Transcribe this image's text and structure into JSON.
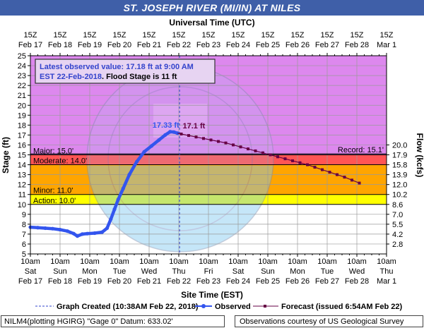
{
  "title": "ST. JOSEPH RIVER (MI/IN) AT NILES",
  "top_axis_title": "Universal Time (UTC)",
  "bottom_axis_title": "Site Time (EST)",
  "left_axis_title": "Stage (ft)",
  "right_axis_title": "Flow (kcfs)",
  "info_box": {
    "line1": "Latest observed value: 17.18 ft at 9:00 AM",
    "line2_a": "EST 22-Feb-2018",
    "line2_b": ". Flood Stage is 11 ft"
  },
  "legend": {
    "graph_created": "Graph Created (10:38AM Feb 22, 2018)",
    "observed": "Observed",
    "forecast": "Forecast (issued 6:54AM Feb 22)"
  },
  "footer": {
    "left": "NILM4(plotting HGIRG) \"Gage 0\" Datum: 633.02'",
    "right": "Observations courtesy of US Geological Survey"
  },
  "colors": {
    "title_bg": "#3f5fa8",
    "major": "#dd88ee",
    "moderate": "#ff5555",
    "minor": "#ffa500",
    "action": "#ffff00",
    "observed": "#3355ee",
    "forecast": "#660044"
  },
  "chart_data": {
    "type": "line",
    "title": "ST. JOSEPH RIVER (MI/IN) AT NILES",
    "xlabel": "Site Time (EST)",
    "ylabel": "Stage (ft)",
    "y2label": "Flow (kcfs)",
    "ylim": [
      5,
      25
    ],
    "xlim": [
      "2018-02-17 10:00",
      "2018-03-01 10:00"
    ],
    "grid": true,
    "bottom_ticks": [
      {
        "time": "10am",
        "day": "Sat",
        "date": "Feb 17"
      },
      {
        "time": "10am",
        "day": "Sun",
        "date": "Feb 18"
      },
      {
        "time": "10am",
        "day": "Mon",
        "date": "Feb 19"
      },
      {
        "time": "10am",
        "day": "Tue",
        "date": "Feb 20"
      },
      {
        "time": "10am",
        "day": "Wed",
        "date": "Feb 21"
      },
      {
        "time": "10am",
        "day": "Thu",
        "date": "Feb 22"
      },
      {
        "time": "10am",
        "day": "Fri",
        "date": "Feb 23"
      },
      {
        "time": "10am",
        "day": "Sat",
        "date": "Feb 24"
      },
      {
        "time": "10am",
        "day": "Sun",
        "date": "Feb 25"
      },
      {
        "time": "10am",
        "day": "Mon",
        "date": "Feb 26"
      },
      {
        "time": "10am",
        "day": "Tue",
        "date": "Feb 27"
      },
      {
        "time": "10am",
        "day": "Wed",
        "date": "Feb 28"
      },
      {
        "time": "10am",
        "day": "Thu",
        "date": "Mar 1"
      }
    ],
    "top_ticks": [
      {
        "time": "15Z",
        "date": "Feb 17"
      },
      {
        "time": "15Z",
        "date": "Feb 18"
      },
      {
        "time": "15Z",
        "date": "Feb 19"
      },
      {
        "time": "15Z",
        "date": "Feb 20"
      },
      {
        "time": "15Z",
        "date": "Feb 21"
      },
      {
        "time": "15Z",
        "date": "Feb 22"
      },
      {
        "time": "15Z",
        "date": "Feb 23"
      },
      {
        "time": "15Z",
        "date": "Feb 24"
      },
      {
        "time": "15Z",
        "date": "Feb 25"
      },
      {
        "time": "15Z",
        "date": "Feb 26"
      },
      {
        "time": "15Z",
        "date": "Feb 27"
      },
      {
        "time": "15Z",
        "date": "Feb 28"
      },
      {
        "time": "15Z",
        "date": "Mar 1"
      }
    ],
    "y_ticks": [
      5,
      6,
      7,
      8,
      9,
      10,
      11,
      12,
      13,
      14,
      15,
      16,
      17,
      18,
      19,
      20,
      21,
      22,
      23,
      24,
      25
    ],
    "flow_ticks": [
      {
        "stage": 6,
        "label": "2.8"
      },
      {
        "stage": 7,
        "label": "4.2"
      },
      {
        "stage": 8,
        "label": "5.5"
      },
      {
        "stage": 9,
        "label": "7.0"
      },
      {
        "stage": 10,
        "label": "8.6"
      },
      {
        "stage": 11,
        "label": "10.2"
      },
      {
        "stage": 12,
        "label": "12.0"
      },
      {
        "stage": 13,
        "label": "13.9"
      },
      {
        "stage": 14,
        "label": "15.8"
      },
      {
        "stage": 15,
        "label": "17.9"
      },
      {
        "stage": 16,
        "label": "20.0"
      }
    ],
    "flood_categories": [
      {
        "name": "Major",
        "label": "Major: 15.0'",
        "from": 15,
        "to": 25
      },
      {
        "name": "Moderate",
        "label": "Moderate: 14.0'",
        "from": 14,
        "to": 15
      },
      {
        "name": "Minor",
        "label": "Minor: 11.0'",
        "from": 11,
        "to": 14
      },
      {
        "name": "Action",
        "label": "Action: 10.0'",
        "from": 10,
        "to": 11
      }
    ],
    "record_label": "Record: 15.1'",
    "record_stage": 15.1,
    "graph_created": "2018-02-22 10:38",
    "observed_peak_label": "17.33 ft",
    "forecast_label": "17.1 ft",
    "observed": [
      [
        "2018-02-17 10:00",
        7.7
      ],
      [
        "2018-02-17 16:00",
        7.65
      ],
      [
        "2018-02-17 22:00",
        7.6
      ],
      [
        "2018-02-18 04:00",
        7.55
      ],
      [
        "2018-02-18 10:00",
        7.45
      ],
      [
        "2018-02-18 16:00",
        7.3
      ],
      [
        "2018-02-18 21:00",
        7.05
      ],
      [
        "2018-02-19 00:00",
        6.8
      ],
      [
        "2018-02-19 04:00",
        7.0
      ],
      [
        "2018-02-19 08:00",
        7.05
      ],
      [
        "2018-02-19 14:00",
        7.1
      ],
      [
        "2018-02-19 20:00",
        7.2
      ],
      [
        "2018-02-20 00:00",
        7.6
      ],
      [
        "2018-02-20 03:00",
        8.5
      ],
      [
        "2018-02-20 06:00",
        9.5
      ],
      [
        "2018-02-20 09:00",
        10.5
      ],
      [
        "2018-02-20 13:00",
        11.6
      ],
      [
        "2018-02-20 18:00",
        13.0
      ],
      [
        "2018-02-21 00:00",
        14.3
      ],
      [
        "2018-02-21 06:00",
        15.3
      ],
      [
        "2018-02-21 12:00",
        15.9
      ],
      [
        "2018-02-21 18:00",
        16.5
      ],
      [
        "2018-02-21 23:00",
        17.0
      ],
      [
        "2018-02-22 03:00",
        17.33
      ],
      [
        "2018-02-22 06:00",
        17.3
      ],
      [
        "2018-02-22 09:00",
        17.18
      ]
    ],
    "forecast": [
      [
        "2018-02-22 12:00",
        17.1
      ],
      [
        "2018-02-22 18:00",
        16.95
      ],
      [
        "2018-02-23 00:00",
        16.8
      ],
      [
        "2018-02-23 06:00",
        16.65
      ],
      [
        "2018-02-23 12:00",
        16.5
      ],
      [
        "2018-02-23 18:00",
        16.35
      ],
      [
        "2018-02-24 00:00",
        16.2
      ],
      [
        "2018-02-24 06:00",
        16.0
      ],
      [
        "2018-02-24 12:00",
        15.8
      ],
      [
        "2018-02-24 18:00",
        15.6
      ],
      [
        "2018-02-25 00:00",
        15.4
      ],
      [
        "2018-02-25 06:00",
        15.2
      ],
      [
        "2018-02-25 12:00",
        15.0
      ],
      [
        "2018-02-25 18:00",
        14.8
      ],
      [
        "2018-02-26 00:00",
        14.6
      ],
      [
        "2018-02-26 06:00",
        14.4
      ],
      [
        "2018-02-26 12:00",
        14.2
      ],
      [
        "2018-02-26 18:00",
        14.0
      ],
      [
        "2018-02-27 00:00",
        13.75
      ],
      [
        "2018-02-27 06:00",
        13.5
      ],
      [
        "2018-02-27 12:00",
        13.25
      ],
      [
        "2018-02-27 18:00",
        13.0
      ],
      [
        "2018-02-28 00:00",
        12.75
      ],
      [
        "2018-02-28 06:00",
        12.45
      ],
      [
        "2018-02-28 12:00",
        12.15
      ]
    ]
  }
}
